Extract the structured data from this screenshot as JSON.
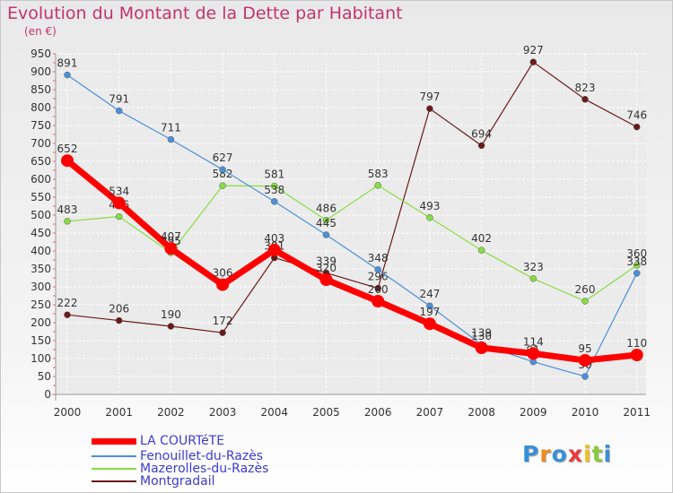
{
  "header": {
    "title": "Evolution du Montant de la Dette par Habitant",
    "unit": "(en €)"
  },
  "logo": {
    "text": "Proxiti"
  },
  "colors": {
    "la_courtete": "#ff0000",
    "fenouillet": "#4d8fd8",
    "mazerolles": "#88dd44",
    "montgradail": "#6b1a1a",
    "title": "#c4336b",
    "legend_text": "#3b3bd6"
  },
  "chart_data": {
    "type": "line",
    "x": [
      "2000",
      "2001",
      "2002",
      "2003",
      "2004",
      "2005",
      "2006",
      "2007",
      "2008",
      "2009",
      "2010",
      "2011"
    ],
    "ylim": [
      0,
      950
    ],
    "yticks": [
      "0",
      "50",
      "100",
      "150",
      "200",
      "250",
      "300",
      "350",
      "400",
      "450",
      "500",
      "550",
      "600",
      "650",
      "700",
      "750",
      "800",
      "850",
      "900",
      "950"
    ],
    "grid": true,
    "legend_position": "bottom",
    "series": [
      {
        "name": "Montgradail",
        "values": [
          222,
          206,
          190,
          172,
          381,
          339,
          296,
          797,
          694,
          927,
          823,
          746
        ],
        "labels": [
          "222",
          "206",
          "190",
          "172",
          "381",
          "339",
          "296",
          "797",
          "694",
          "927",
          "823",
          "746"
        ]
      },
      {
        "name": "Mazerolles-du-Razès",
        "values": [
          483,
          496,
          395,
          582,
          581,
          486,
          583,
          493,
          402,
          323,
          260,
          360
        ],
        "labels": [
          "483",
          "496",
          "395",
          "582",
          "581",
          "486",
          "583",
          "493",
          "402",
          "323",
          "260",
          "360"
        ]
      },
      {
        "name": "Fenouillet-du-Razès",
        "values": [
          891,
          791,
          711,
          627,
          538,
          445,
          348,
          247,
          139,
          91,
          50,
          338
        ],
        "labels": [
          "891",
          "791",
          "711",
          "627",
          "538",
          "445",
          "348",
          "247",
          "139",
          "91",
          "50",
          "338"
        ]
      },
      {
        "name": "LA COURTéTE",
        "values": [
          652,
          534,
          407,
          306,
          403,
          320,
          260,
          197,
          130,
          114,
          95,
          110
        ],
        "labels": [
          "652",
          "534",
          "407",
          "306",
          "403",
          "320",
          "260",
          "197",
          "130",
          "114",
          "95",
          "110"
        ]
      }
    ]
  },
  "legend": [
    {
      "label": "LA COURTéTE",
      "key": "la_courtete"
    },
    {
      "label": "Fenouillet-du-Razès",
      "key": "fenouillet"
    },
    {
      "label": "Mazerolles-du-Razès",
      "key": "mazerolles"
    },
    {
      "label": "Montgradail",
      "key": "montgradail"
    }
  ]
}
